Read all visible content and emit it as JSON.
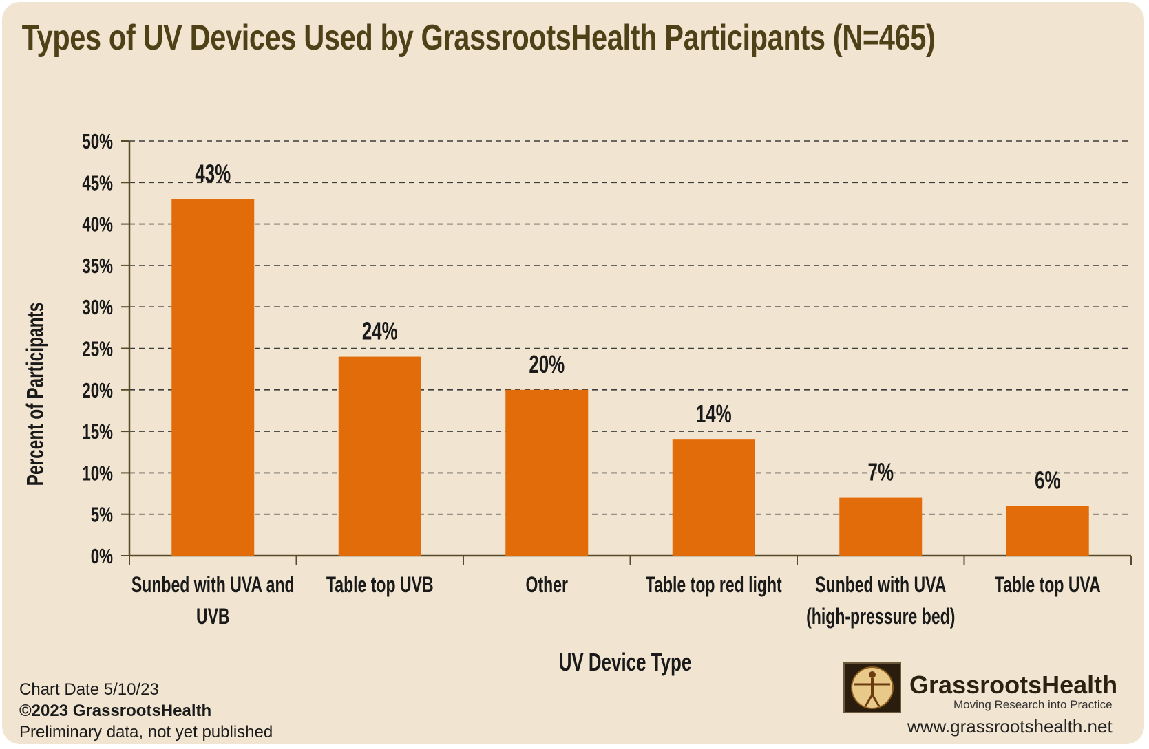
{
  "title": "Types of UV Devices Used by GrassrootsHealth Participants (N=465)",
  "colors": {
    "background": "#f1e5d1",
    "bar": "#e36c0a",
    "title": "#4e4117",
    "grid": "#3c3c3c",
    "axis": "#5a4a2a"
  },
  "chart_data": {
    "type": "bar",
    "title": "Types of UV Devices Used by GrassrootsHealth Participants (N=465)",
    "xlabel": "UV Device Type",
    "ylabel": "Percent of Participants",
    "categories": [
      [
        "Sunbed with UVA and",
        "UVB"
      ],
      [
        "Table top UVB"
      ],
      [
        "Other"
      ],
      [
        "Table top red light"
      ],
      [
        "Sunbed with UVA",
        "(high-pressure bed)"
      ],
      [
        "Table top UVA"
      ]
    ],
    "values": [
      43,
      24,
      20,
      14,
      7,
      6
    ],
    "data_labels": [
      "43%",
      "24%",
      "20%",
      "14%",
      "7%",
      "6%"
    ],
    "ylim": [
      0,
      50
    ],
    "yticks": [
      "0%",
      "5%",
      "10%",
      "15%",
      "20%",
      "25%",
      "30%",
      "35%",
      "40%",
      "45%",
      "50%"
    ],
    "grid": true,
    "grid_style": "dashed"
  },
  "footer": {
    "chart_date": "Chart Date 5/10/23",
    "copyright": "©2023 GrassrootsHealth",
    "note": "Preliminary data, not yet published"
  },
  "brand": {
    "name": "GrassrootsHealth",
    "tagline": "Moving Research into Practice",
    "url": "www.grassrootshealth.net"
  }
}
